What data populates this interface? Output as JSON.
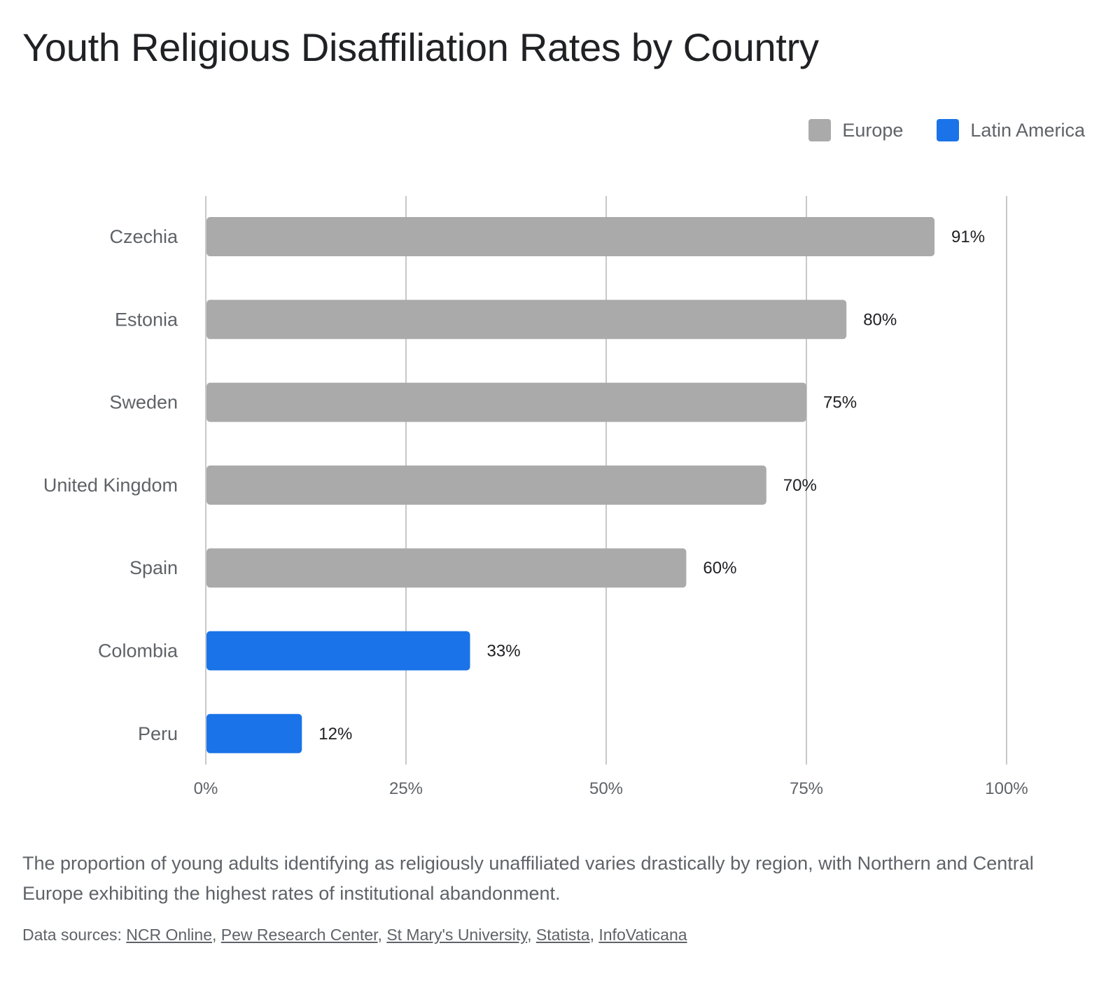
{
  "colors": {
    "europe": "#aaaaaa",
    "latin_america": "#1a73e8",
    "grid": "#c8c8c8"
  },
  "chart_data": {
    "type": "bar",
    "orientation": "horizontal",
    "title": "Youth Religious Disaffiliation Rates by Country",
    "legend_position": "top-right",
    "legend": [
      {
        "label": "Europe",
        "color": "#aaaaaa"
      },
      {
        "label": "Latin America",
        "color": "#1a73e8"
      }
    ],
    "categories": [
      "Czechia",
      "Estonia",
      "Sweden",
      "United Kingdom",
      "Spain",
      "Colombia",
      "Peru"
    ],
    "values": [
      91,
      80,
      75,
      70,
      60,
      33,
      12
    ],
    "regions": [
      "Europe",
      "Europe",
      "Europe",
      "Europe",
      "Europe",
      "Latin America",
      "Latin America"
    ],
    "data_labels": [
      "91%",
      "80%",
      "75%",
      "70%",
      "60%",
      "33%",
      "12%"
    ],
    "xlim": [
      0,
      100
    ],
    "x_ticks": [
      0,
      25,
      50,
      75,
      100
    ],
    "x_tick_labels": [
      "0%",
      "25%",
      "50%",
      "75%",
      "100%"
    ],
    "grid": "vertical",
    "xlabel": "",
    "ylabel": ""
  },
  "caption": "The proportion of young adults identifying as religiously unaffiliated varies drastically by region, with Northern and Central Europe exhibiting the highest rates of institutional abandonment.",
  "sources": {
    "prefix": "Data sources: ",
    "links": [
      "NCR Online",
      "Pew Research Center",
      "St Mary's University",
      "Statista",
      "InfoVaticana"
    ]
  }
}
